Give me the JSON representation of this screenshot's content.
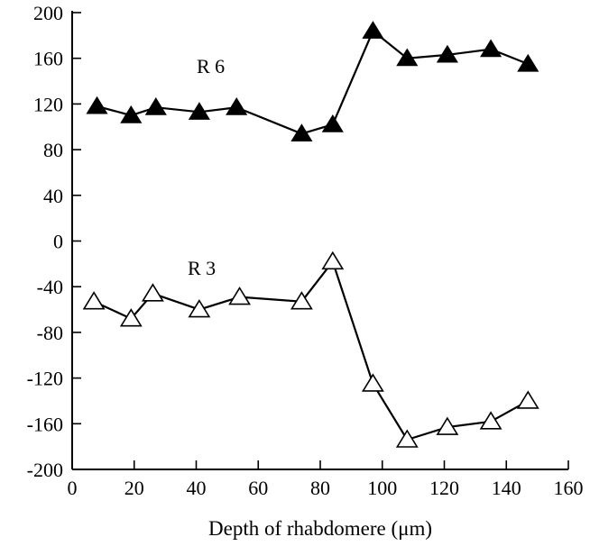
{
  "chart_data": {
    "type": "line",
    "title": "",
    "xlabel": "Depth of rhabdomere (μm)",
    "ylabel": "",
    "xlim": [
      0,
      160
    ],
    "ylim": [
      -200,
      200
    ],
    "x_ticks": [
      0,
      20,
      40,
      60,
      80,
      100,
      120,
      140,
      160
    ],
    "y_ticks": [
      200,
      160,
      120,
      80,
      40,
      0,
      -40,
      -80,
      -120,
      -160,
      -200
    ],
    "grid": false,
    "legend": "none",
    "series": [
      {
        "name": "R 6",
        "marker": "filled-triangle",
        "color": "#000000",
        "x": [
          8,
          19,
          27,
          41,
          53,
          74,
          84,
          97,
          108,
          121,
          135,
          147
        ],
        "y": [
          118,
          110,
          117,
          113,
          117,
          94,
          102,
          184,
          160,
          163,
          168,
          155
        ]
      },
      {
        "name": "R 3",
        "marker": "open-triangle",
        "color": "#000000",
        "x": [
          7,
          19,
          26,
          41,
          54,
          74,
          84,
          97,
          108,
          121,
          135,
          147
        ],
        "y": [
          -53,
          -68,
          -46,
          -60,
          -49,
          -53,
          -18,
          -125,
          -174,
          -163,
          -158,
          -140
        ]
      }
    ]
  }
}
